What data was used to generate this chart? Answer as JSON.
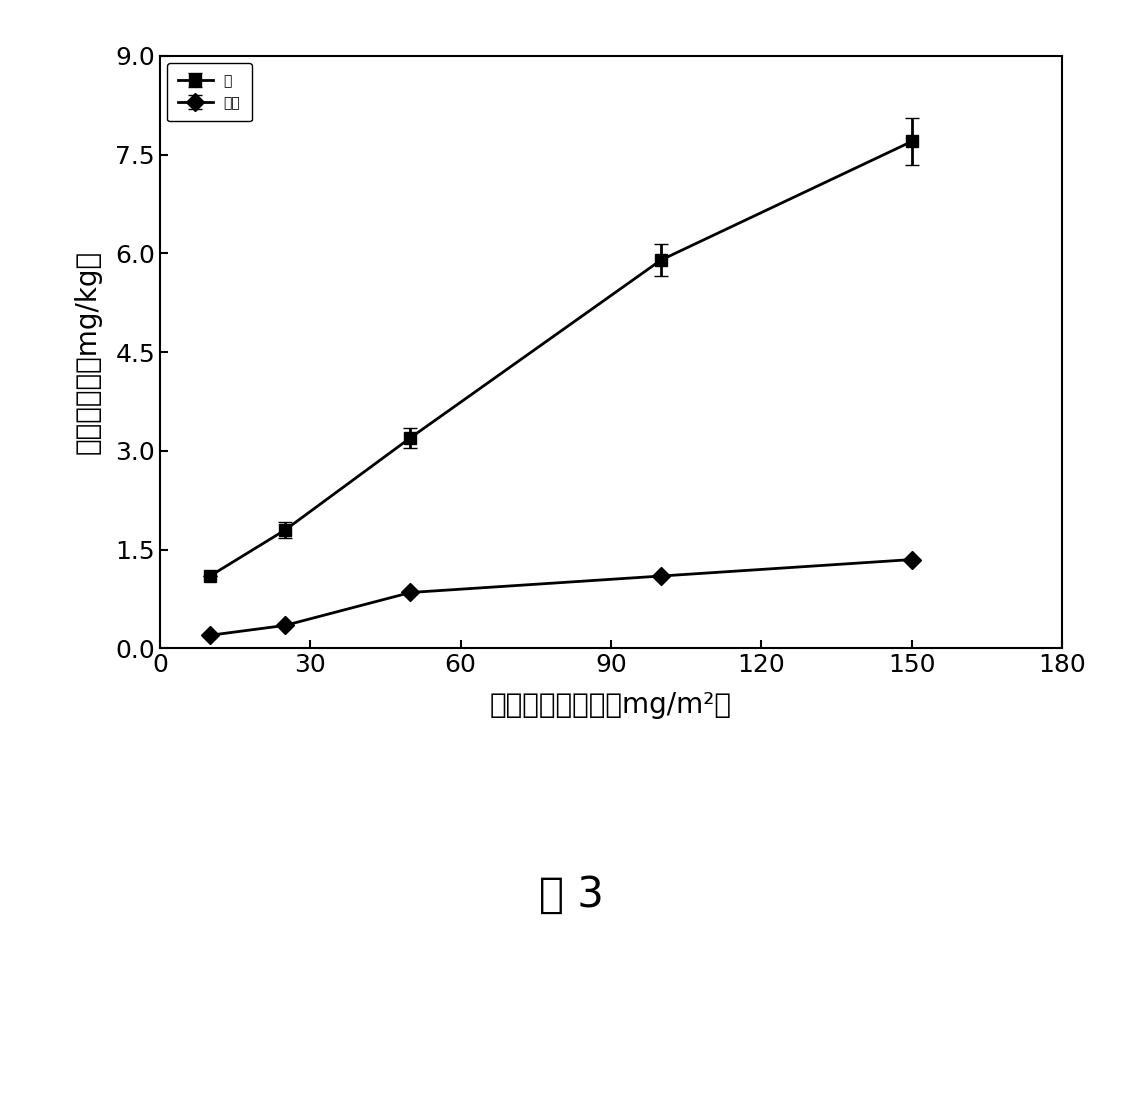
{
  "x": [
    10,
    25,
    50,
    100,
    150
  ],
  "ye_y": [
    1.1,
    1.8,
    3.2,
    5.9,
    7.7
  ],
  "ye_yerr": [
    0.0,
    0.12,
    0.15,
    0.25,
    0.35
  ],
  "kugen_y": [
    0.2,
    0.35,
    0.85,
    1.1,
    1.35
  ],
  "kugen_yerr": [
    0.0,
    0.0,
    0.0,
    0.0,
    0.0
  ],
  "xlabel": "液体碹肥噴施量（mg/m²）",
  "ylabel": "番薯碹含量（mg/kg）",
  "legend_ye": "叶",
  "legend_kugen": "块根",
  "caption": "图 3",
  "xlim": [
    0,
    180
  ],
  "ylim": [
    0.0,
    9.0
  ],
  "xticks": [
    0,
    30,
    60,
    90,
    120,
    150,
    180
  ],
  "yticks": [
    0.0,
    1.5,
    3.0,
    4.5,
    6.0,
    7.5,
    9.0
  ],
  "ytick_labels": [
    "0.0",
    "1.5",
    "3.0",
    "4.5",
    "6.0",
    "7.5",
    "9.0"
  ],
  "line_color": "#000000",
  "marker_square": "s",
  "marker_diamond": "D",
  "markersize": 9,
  "linewidth": 2.0,
  "capsize": 5,
  "figsize": [
    11.42,
    11.18
  ],
  "dpi": 100
}
